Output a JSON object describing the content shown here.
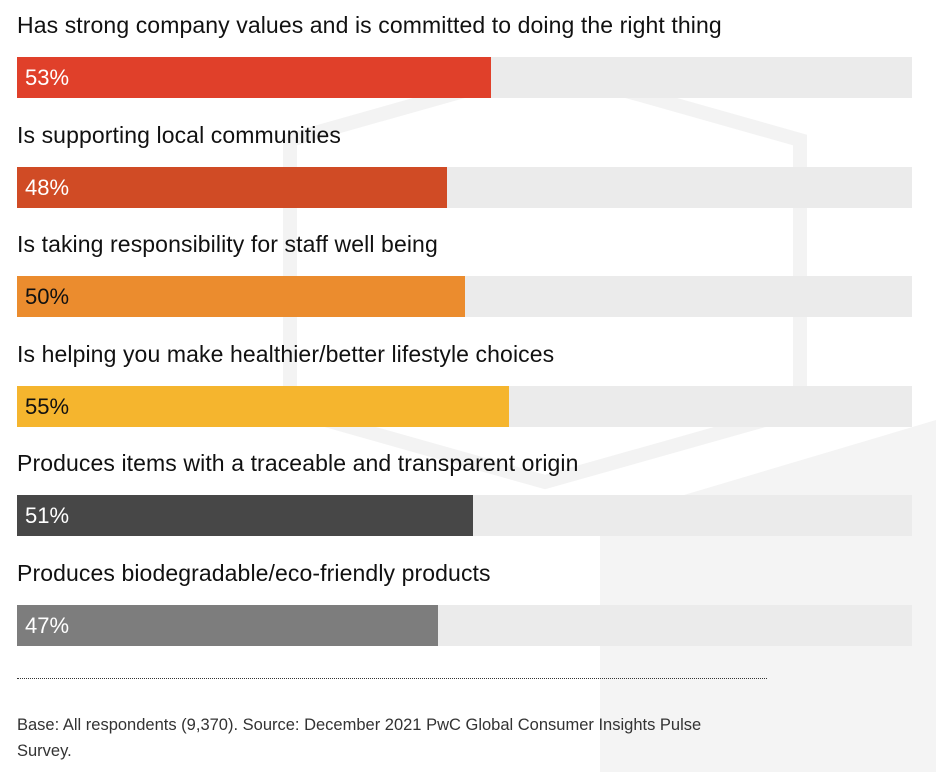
{
  "chart_data": {
    "type": "bar",
    "orientation": "horizontal",
    "categories": [
      "Has strong company values and is committed to doing the right thing",
      "Is supporting local communities",
      "Is taking responsibility for staff well being",
      "Is helping you make healthier/better lifestyle choices",
      "Produces items with a traceable and transparent origin",
      "Produces biodegradable/eco-friendly products"
    ],
    "values": [
      53,
      48,
      50,
      55,
      51,
      47
    ],
    "value_labels": [
      "53%",
      "48%",
      "50%",
      "55%",
      "51%",
      "47%"
    ],
    "colors": [
      "#e0402a",
      "#d04b25",
      "#eb8c2e",
      "#f5b52e",
      "#474747",
      "#7d7d7d"
    ],
    "label_colors": [
      "#ffffff",
      "#ffffff",
      "#111111",
      "#111111",
      "#ffffff",
      "#ffffff"
    ],
    "xlim": [
      0,
      100
    ],
    "unit": "%",
    "grid": false,
    "legend": "none",
    "title": ""
  },
  "footnote": "Base: All respondents (9,370). Source: December 2021 PwC Global Consumer Insights Pulse Survey.",
  "colors": {
    "track": "#ebebeb",
    "text": "#111111",
    "decor": "#f2f2f2"
  }
}
